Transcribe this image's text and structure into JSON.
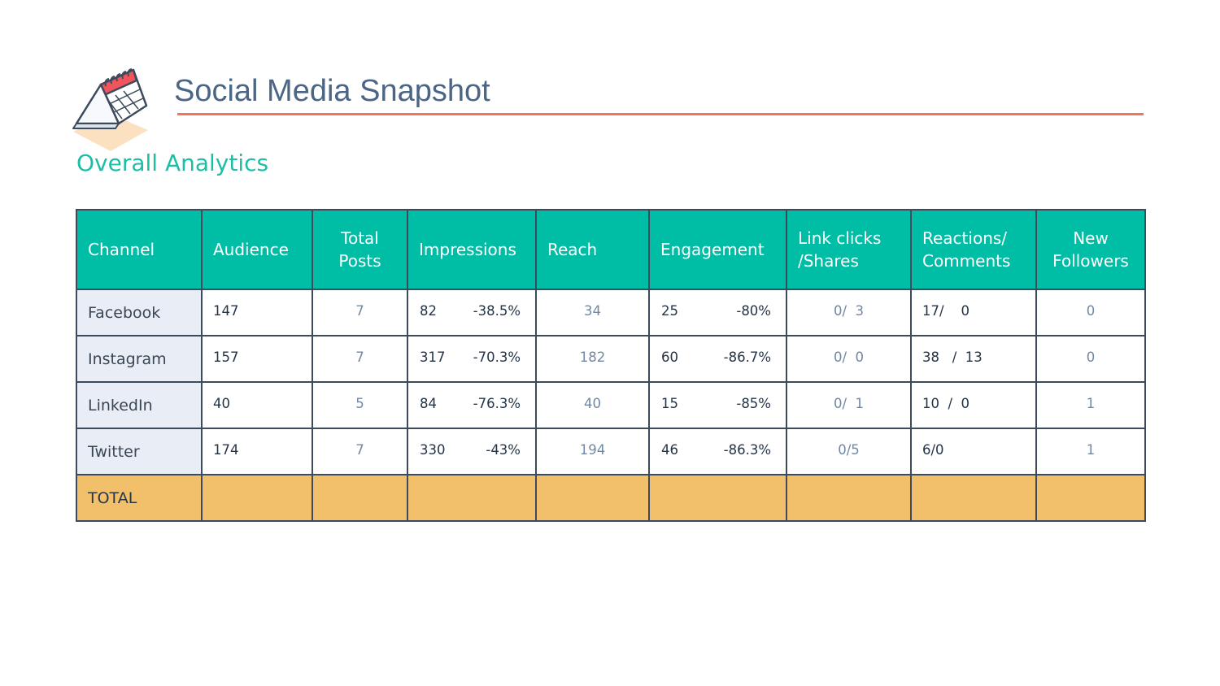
{
  "header": {
    "title": "Social Media Snapshot",
    "subtitle": "Overall Analytics",
    "logo_icon": "calendar-icon",
    "accent_rule_color": "#f0755a"
  },
  "colors": {
    "header_bg": "#00bda5",
    "channel_bg": "#e9eef6",
    "total_bg": "#f2bf6a",
    "subtitle": "#1bbfa6",
    "title": "#4a6585"
  },
  "table": {
    "columns": {
      "channel": "Channel",
      "audience": "Audience",
      "total_posts_1": "Total",
      "total_posts_2": "Posts",
      "impressions": "Impressions",
      "reach": "Reach",
      "engagement": "Engagement",
      "link_clicks_1": "Link clicks",
      "link_clicks_2": "/Shares",
      "reactions_1": "Reactions/",
      "reactions_2": "Comments",
      "new_followers_1": "New",
      "new_followers_2": "Followers"
    },
    "rows": [
      {
        "channel": "Facebook",
        "audience": "147",
        "posts": "7",
        "impressions": "82",
        "impressions_change": "-38.5%",
        "reach": "34",
        "engagement": "25",
        "engagement_change": "-80%",
        "link_clicks": "0/  3",
        "reactions": "17/    0",
        "new_followers": "0"
      },
      {
        "channel": "Instagram",
        "audience": "157",
        "posts": "7",
        "impressions": "317",
        "impressions_change": "-70.3%",
        "reach": "182",
        "engagement": "60",
        "engagement_change": "-86.7%",
        "link_clicks": "0/  0",
        "reactions": "38   /  13",
        "new_followers": "0"
      },
      {
        "channel": "LinkedIn",
        "audience": "40",
        "posts": "5",
        "impressions": "84",
        "impressions_change": "-76.3%",
        "reach": "40",
        "engagement": "15",
        "engagement_change": "-85%",
        "link_clicks": "0/  1",
        "reactions": "10  /  0",
        "new_followers": "1"
      },
      {
        "channel": "Twitter",
        "audience": "174",
        "posts": "7",
        "impressions": "330",
        "impressions_change": "-43%",
        "reach": "194",
        "engagement": "46",
        "engagement_change": "-86.3%",
        "link_clicks": "0/5",
        "reactions": "6/0",
        "new_followers": "1"
      }
    ],
    "total_label": "TOTAL"
  }
}
